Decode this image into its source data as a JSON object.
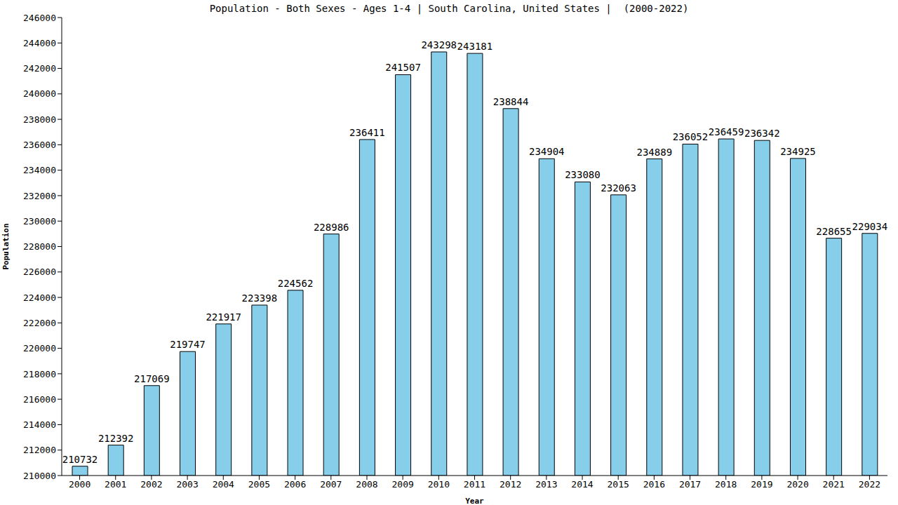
{
  "chart_data": {
    "type": "bar",
    "title": "Population - Both Sexes - Ages 1-4 | South Carolina, United States |  (2000-2022)",
    "x_label": "Year",
    "y_label": "Population",
    "categories": [
      "2000",
      "2001",
      "2002",
      "2003",
      "2004",
      "2005",
      "2006",
      "2007",
      "2008",
      "2009",
      "2010",
      "2011",
      "2012",
      "2013",
      "2014",
      "2015",
      "2016",
      "2017",
      "2018",
      "2019",
      "2020",
      "2021",
      "2022"
    ],
    "values": [
      210732,
      212392,
      217069,
      219747,
      221917,
      223398,
      224562,
      228986,
      236411,
      241507,
      243298,
      243181,
      238844,
      234904,
      233080,
      232063,
      234889,
      236052,
      236459,
      236342,
      234925,
      228655,
      229034
    ],
    "color": "#87ceeb",
    "ylim": [
      210000,
      246000
    ],
    "yticks": [
      210000,
      212000,
      214000,
      216000,
      218000,
      220000,
      222000,
      224000,
      226000,
      228000,
      230000,
      232000,
      234000,
      236000,
      238000,
      240000,
      242000,
      244000,
      246000
    ],
    "grid": false,
    "data_labels": true
  }
}
